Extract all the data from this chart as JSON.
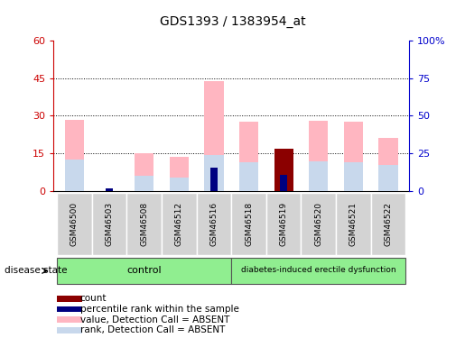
{
  "title": "GDS1393 / 1383954_at",
  "samples": [
    "GSM46500",
    "GSM46503",
    "GSM46508",
    "GSM46512",
    "GSM46516",
    "GSM46518",
    "GSM46519",
    "GSM46520",
    "GSM46521",
    "GSM46522"
  ],
  "value_absent": [
    28.5,
    0,
    15.0,
    13.5,
    44.0,
    27.5,
    0,
    28.0,
    27.5,
    21.0
  ],
  "rank_absent": [
    12.5,
    0,
    6.0,
    5.5,
    14.5,
    11.5,
    0,
    12.0,
    11.5,
    10.5
  ],
  "count": [
    0,
    0,
    0,
    0,
    0,
    0,
    17.0,
    0,
    0,
    0
  ],
  "percentile_rank": [
    0,
    2.0,
    0,
    0,
    15.5,
    0,
    11.0,
    0,
    0,
    0
  ],
  "ylim_left": [
    0,
    60
  ],
  "ylim_right": [
    0,
    100
  ],
  "yticks_left": [
    0,
    15,
    30,
    45,
    60
  ],
  "yticks_right": [
    0,
    25,
    50,
    75,
    100
  ],
  "ytick_labels_left": [
    "0",
    "15",
    "30",
    "45",
    "60"
  ],
  "ytick_labels_right": [
    "0",
    "25",
    "50",
    "75",
    "100%"
  ],
  "color_value_absent": "#ffb6c1",
  "color_rank_absent": "#c8d8ec",
  "color_count": "#8b0000",
  "color_percentile": "#000080",
  "color_group_bg": "#90ee90",
  "color_sample_bg": "#d3d3d3",
  "axis_left_color": "#cc0000",
  "axis_right_color": "#0000cc",
  "legend_items": [
    {
      "label": "count",
      "color": "#8b0000"
    },
    {
      "label": "percentile rank within the sample",
      "color": "#000080"
    },
    {
      "label": "value, Detection Call = ABSENT",
      "color": "#ffb6c1"
    },
    {
      "label": "rank, Detection Call = ABSENT",
      "color": "#c8d8ec"
    }
  ],
  "bar_width": 0.55,
  "control_count": 5,
  "disease_label": "diabetes-induced erectile dysfunction"
}
